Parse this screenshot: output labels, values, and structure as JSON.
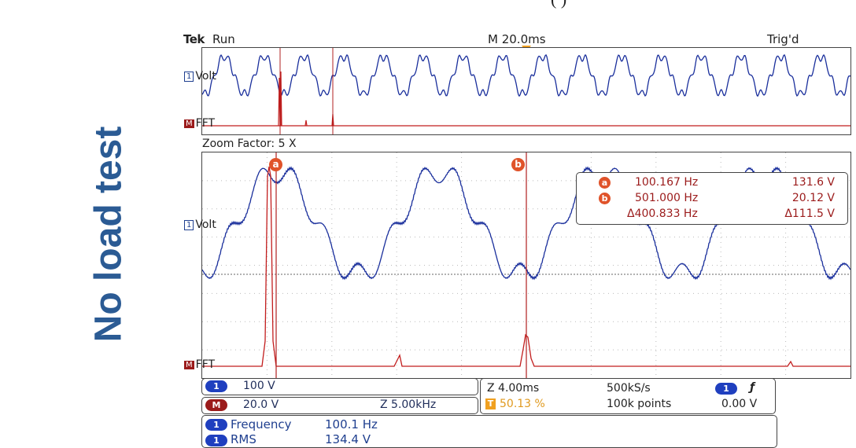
{
  "side_title": "No load test",
  "caption_fragment": "(  )",
  "header": {
    "brand": "Tek",
    "status": "Run",
    "timebase": "M 20.0ms",
    "trigger_status": "Trig'd"
  },
  "upper_panel": {
    "ch1_number": "1",
    "ch1_label": "Volt",
    "math_badge": "M",
    "math_label": "FFT"
  },
  "zoom_factor": "Zoom Factor: 5 X",
  "lower_panel": {
    "ch1_number": "1",
    "ch1_label": "Volt",
    "math_badge": "M",
    "math_label": "FFT",
    "cursor_a": "a",
    "cursor_b": "b"
  },
  "cursor_readout": {
    "a_badge": "a",
    "a_freq": "100.167 Hz",
    "a_value": "131.6 V",
    "b_badge": "b",
    "b_freq": "501.000 Hz",
    "b_value": "20.12 V",
    "delta_freq": "Δ400.833 Hz",
    "delta_value": "Δ111.5 V"
  },
  "status_bar": {
    "ch1_badge": "1",
    "ch1_scale": "100 V",
    "math_badge": "M",
    "math_scale": "20.0 V",
    "math_span": "Z 5.00kHz",
    "zoom_time": "Z 4.00ms",
    "trigger_pos_badge": "T",
    "trigger_pos": "50.13 %",
    "sample_rate": "500kS/s",
    "record_length": "100k points",
    "trig_ch_badge": "1",
    "trig_slope": "ƒ",
    "trig_level": "0.00 V"
  },
  "measurements": {
    "m1_badge": "1",
    "m1_label": "Frequency",
    "m1_value": "100.1 Hz",
    "m2_badge": "1",
    "m2_label": "RMS",
    "m2_value": "134.4 V"
  },
  "colors": {
    "trace_volt": "#1a2f9c",
    "trace_fft": "#c21d1d",
    "title_blue": "#2b5b94"
  }
}
